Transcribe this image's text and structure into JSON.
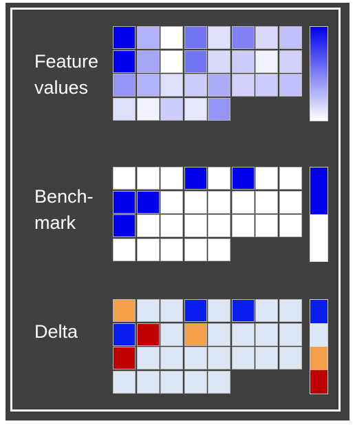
{
  "colors": {
    "background": "#404040",
    "high": "#0000ee",
    "low": "#ffffff",
    "delta_blue": "#0a1ef0",
    "delta_neutral": "#dce6f5",
    "delta_orange": "#f4a04a",
    "delta_red": "#c00000"
  },
  "panels": [
    {
      "id": "feature-values",
      "label_lines": [
        "Feature",
        "values"
      ],
      "scale": "gradient",
      "rows": [
        [
          1.0,
          0.3,
          0.0,
          0.55,
          0.12,
          0.5,
          0.15,
          0.25
        ],
        [
          1.0,
          0.35,
          0.0,
          0.55,
          0.15,
          0.2,
          0.06,
          0.18
        ],
        [
          0.42,
          0.3,
          0.13,
          0.2,
          0.33,
          0.18,
          0.2,
          0.25
        ],
        [
          0.13,
          0.05,
          0.2,
          0.1,
          0.42
        ]
      ]
    },
    {
      "id": "benchmark",
      "label_lines": [
        "Bench-",
        "mark"
      ],
      "scale": "binary",
      "rows": [
        [
          0,
          0,
          0,
          1,
          0,
          1,
          0,
          0
        ],
        [
          1,
          1,
          0,
          0,
          0,
          0,
          0,
          0
        ],
        [
          1,
          0,
          0,
          0,
          0,
          0,
          0,
          0
        ],
        [
          0,
          0,
          0,
          0,
          0
        ]
      ]
    },
    {
      "id": "delta",
      "label_lines": [
        "Delta"
      ],
      "scale": "categorical",
      "rows": [
        [
          "orange",
          "neutral",
          "neutral",
          "blue",
          "neutral",
          "blue",
          "neutral",
          "neutral"
        ],
        [
          "blue",
          "red",
          "neutral",
          "orange",
          "neutral",
          "neutral",
          "neutral",
          "neutral"
        ],
        [
          "red",
          "neutral",
          "neutral",
          "neutral",
          "neutral",
          "neutral",
          "neutral",
          "neutral"
        ],
        [
          "neutral",
          "neutral",
          "neutral",
          "neutral",
          "neutral"
        ]
      ]
    }
  ]
}
